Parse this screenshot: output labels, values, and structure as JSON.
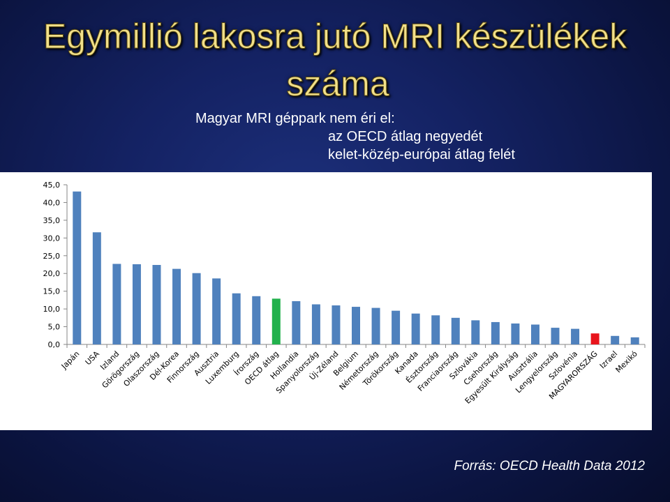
{
  "title": {
    "line1": "Egymillió lakosra jutó MRI készülékek",
    "line2": "száma"
  },
  "subtitle": {
    "line1": "Magyar MRI géppark nem éri el:",
    "line2": "az OECD átlag negyedét",
    "line3": "kelet-közép-európai átlag felét"
  },
  "source": "Forrás: OECD Health Data 2012",
  "colors": {
    "bar_default": "#4f81bd",
    "bar_oecd": "#22b14c",
    "bar_hungary": "#e8141c"
  },
  "chart_data": {
    "type": "bar",
    "ylim": [
      0,
      45
    ],
    "yticks": [
      "0,0",
      "5,0",
      "10,0",
      "15,0",
      "20,0",
      "25,0",
      "30,0",
      "35,0",
      "40,0",
      "45,0"
    ],
    "grid": false,
    "categories": [
      "Japán",
      "USA",
      "Izland",
      "Görögország",
      "Olaszország",
      "Dél-Korea",
      "Finnország",
      "Ausztria",
      "Luxemburg",
      "Írország",
      "OECD átlag",
      "Hollandia",
      "Spanyolország",
      "Új-Zéland",
      "Belgium",
      "Németország",
      "Törökország",
      "Kanada",
      "Észtország",
      "Franciaország",
      "Szlovákia",
      "Csehország",
      "Egyesült Királyság",
      "Ausztrália",
      "Lengyelország",
      "Szlovénia",
      "MAGYARORSZÁG",
      "Izrael",
      "Mexikó"
    ],
    "values": [
      43.1,
      31.6,
      22.7,
      22.6,
      22.4,
      21.3,
      20.1,
      18.6,
      14.4,
      13.6,
      12.9,
      12.2,
      11.3,
      11.0,
      10.6,
      10.3,
      9.5,
      8.7,
      8.2,
      7.5,
      6.8,
      6.3,
      5.9,
      5.6,
      4.7,
      4.4,
      3.1,
      2.4,
      2.0
    ],
    "highlight": {
      "OECD átlag": "bar_oecd",
      "MAGYARORSZÁG": "bar_hungary"
    }
  }
}
